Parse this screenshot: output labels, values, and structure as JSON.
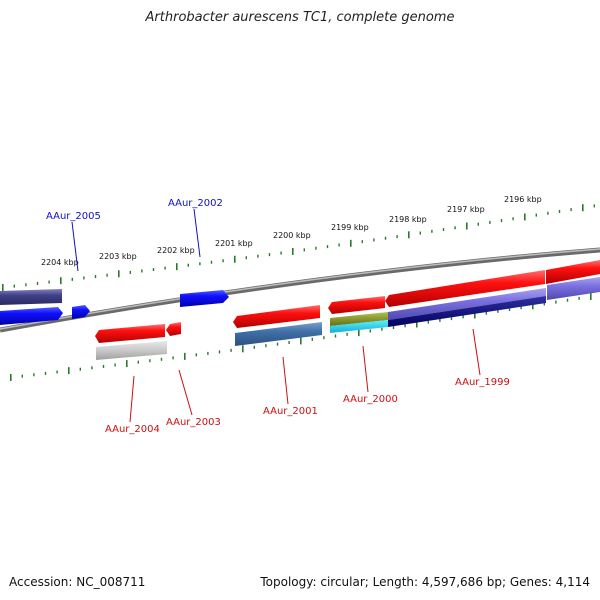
{
  "title": "Arthrobacter aurescens TC1, complete genome",
  "footer": {
    "accession": "Accession: NC_008711",
    "summary": "Topology: circular; Length: 4,597,686 bp; Genes: 4,114"
  },
  "colors": {
    "forward_label": "#1010c8",
    "reverse_label": "#cc1010",
    "backbone": "#808080",
    "tick": "#2a7a2a"
  },
  "kbp_labels": [
    "2204 kbp",
    "2203 kbp",
    "2202 kbp",
    "2201 kbp",
    "2200 kbp",
    "2199 kbp",
    "2198 kbp",
    "2197 kbp",
    "2196 kbp"
  ],
  "genes": {
    "forward": [
      "AAur_2005",
      "AAur_2002"
    ],
    "reverse": [
      "AAur_2004",
      "AAur_2003",
      "AAur_2001",
      "AAur_2000",
      "AAur_1999"
    ]
  }
}
